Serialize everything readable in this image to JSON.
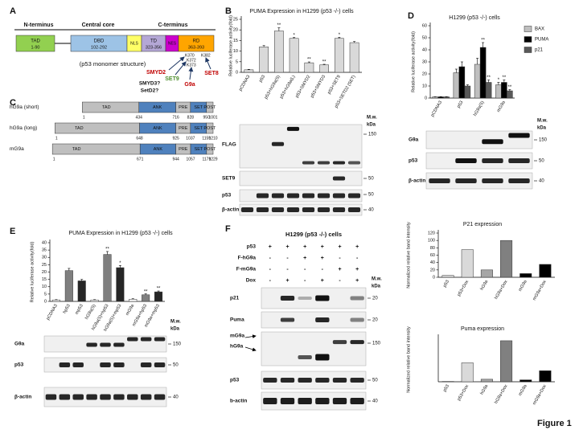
{
  "panel_labels": [
    "A",
    "B",
    "C",
    "D",
    "E",
    "F"
  ],
  "figure_label": "Figure 1",
  "p53_map": {
    "regions": [
      "N-terminus",
      "Central core",
      "C-terminus"
    ],
    "domains": [
      {
        "name": "TAD",
        "range": "1-90"
      },
      {
        "name": "DBD",
        "range": "102-292"
      },
      {
        "name": "NLS"
      },
      {
        "name": "TD",
        "range": "323-356"
      },
      {
        "name": "NES"
      },
      {
        "name": "RD",
        "range": "363-393"
      }
    ],
    "caption": "(p53 monomer structure)",
    "sites": [
      "K370",
      "K382",
      "K372",
      "K373"
    ],
    "enzymes": [
      "SMYD2",
      "SET9",
      "SMYD3?",
      "SetD2?",
      "G9a",
      "SET8"
    ]
  },
  "g9a_constructs": [
    {
      "name": "hG9a (short)",
      "domains": [
        "TAD",
        "ANK",
        "PRE",
        "SET",
        "POST"
      ],
      "positions": [
        1,
        434,
        716,
        828,
        950,
        1001
      ]
    },
    {
      "name": "hG9a (long)",
      "domains": [
        "TAD",
        "ANK",
        "PRE",
        "SET",
        "POST"
      ],
      "positions": [
        1,
        648,
        925,
        1037,
        1159,
        1210
      ]
    },
    {
      "name": "mG9a",
      "domains": [
        "TAD",
        "ANK",
        "PRE",
        "SET",
        "POST"
      ],
      "positions": [
        1,
        671,
        944,
        1057,
        1179,
        1229
      ]
    }
  ],
  "blots": {
    "B": {
      "labels": [
        "FLAG",
        "SET9",
        "p53",
        "β-actin"
      ],
      "mw": "M.w.",
      "unit": "kDa",
      "markers": [
        150,
        50,
        50,
        40
      ]
    },
    "D": {
      "labels": [
        "G9a",
        "p53",
        "β-actin"
      ],
      "mw": "M.w.",
      "unit": "kDa",
      "markers": [
        150,
        50,
        40
      ]
    },
    "E": {
      "labels": [
        "G9a",
        "p53",
        "β-actin"
      ],
      "mw": "M.w.",
      "unit": "kDa",
      "markers": [
        150,
        50,
        40
      ]
    },
    "F": {
      "title": "H1299 (p53 -/-) cells",
      "conditions": [
        {
          "name": "p53",
          "signs": [
            "+",
            "+",
            "+",
            "+",
            "+",
            "+"
          ]
        },
        {
          "name": "F-hG9a",
          "signs": [
            "-",
            "-",
            "+",
            "+",
            "-",
            "-"
          ]
        },
        {
          "name": "F-mG9a",
          "signs": [
            "-",
            "-",
            "-",
            "-",
            "+",
            "+"
          ]
        },
        {
          "name": "Dox",
          "signs": [
            "-",
            "+",
            "-",
            "+",
            "-",
            "+"
          ]
        }
      ],
      "labels": [
        "p21",
        "Puma",
        "mG9a",
        "hG9a",
        "p53",
        "b-actin"
      ],
      "mw": "M.w.",
      "unit": "kDa",
      "markers": [
        20,
        20,
        150,
        50,
        40
      ]
    }
  },
  "chart_data": [
    {
      "type": "bar",
      "title": "PUMA Expression in H1299 (p53 -/-) cells",
      "y_label": "Relative luciferase activity(fold)",
      "categories": [
        "pCDNA3",
        "p53",
        "p53+hG9a(S)",
        "p53+hG9a(L)",
        "p53+SMYD2",
        "p53+SMYD3",
        "p53+SET9",
        "p53+SETD2 (SET)"
      ],
      "values": [
        1.2,
        12,
        19.5,
        16,
        4.5,
        3.5,
        16,
        14
      ],
      "errors": [
        0.2,
        0.6,
        1.5,
        0.4,
        0.4,
        0.3,
        0.5,
        0.5
      ],
      "annotations": [
        null,
        null,
        "**",
        "*",
        "**",
        "**",
        "*",
        null
      ],
      "color": "#d9d9d9",
      "ylim": [
        0,
        25
      ],
      "yticks": [
        0,
        5,
        10,
        15,
        20,
        25
      ]
    },
    {
      "type": "bar",
      "title": "H1299 (p53 -/-) cells",
      "y_label": "Relative luciferase activity(fold)",
      "categories": [
        "pCDNA3",
        "p53",
        "hG9a(S)",
        "mG9a"
      ],
      "series": [
        {
          "name": "BAX",
          "color": "#bfbfbf",
          "values": [
            1,
            21,
            28,
            11
          ],
          "errors": [
            0.2,
            3,
            5,
            2
          ],
          "annotations": [
            null,
            null,
            null,
            "*"
          ]
        },
        {
          "name": "PUMA",
          "color": "#000000",
          "values": [
            1,
            26,
            42,
            13
          ],
          "errors": [
            0.2,
            4,
            4,
            2
          ],
          "annotations": [
            null,
            null,
            "**",
            "**"
          ]
        },
        {
          "name": "p21",
          "color": "#595959",
          "values": [
            1,
            10,
            13,
            6
          ],
          "errors": [
            0.2,
            1,
            2,
            1
          ],
          "annotations": [
            null,
            null,
            "**",
            "**"
          ]
        }
      ],
      "legend": "right",
      "ylim": [
        0,
        60
      ],
      "yticks": [
        0,
        10,
        20,
        30,
        40,
        50,
        60
      ]
    },
    {
      "type": "bar",
      "title": "PUMA Expression in H1299 (p53 -/-) cells",
      "y_label": "Relative luciferase activity(fold)",
      "categories": [
        "pCDNA3",
        "hp53",
        "mp53",
        "hG9a(S)",
        "hG9a(S)+hp53",
        "hG9a(S)+mp53",
        "mG9a",
        "mG9a+hp53",
        "mG9a+mp53"
      ],
      "values": [
        1,
        21,
        14,
        1,
        32,
        23,
        1.5,
        4.5,
        6.5
      ],
      "errors": [
        0.2,
        1.5,
        1,
        0.2,
        2,
        1.5,
        0.3,
        0.6,
        0.6
      ],
      "annotations": [
        null,
        null,
        null,
        null,
        "**",
        "*",
        null,
        "**",
        "**"
      ],
      "colors": [
        "#ffffff",
        "#7f7f7f",
        "#262626",
        "#ffffff",
        "#7f7f7f",
        "#262626",
        "#ffffff",
        "#7f7f7f",
        "#262626"
      ],
      "ylim": [
        0,
        40
      ],
      "yticks": [
        0,
        5,
        10,
        15,
        20,
        25,
        30,
        35,
        40
      ]
    },
    {
      "type": "bar",
      "title": "P21 expression",
      "y_label": "Normalized relative band intensity",
      "categories": [
        "p53",
        "p53+Dox",
        "hG9a",
        "hG9a+Dox",
        "mG9a",
        "mG9a+Dox"
      ],
      "values": [
        5,
        75,
        20,
        100,
        10,
        35
      ],
      "colors": [
        "#d9d9d9",
        "#d9d9d9",
        "#a6a6a6",
        "#808080",
        "#000000",
        "#000000"
      ],
      "ylim": [
        0,
        120
      ],
      "yticks": [
        0,
        20,
        40,
        60,
        80,
        100,
        120
      ]
    },
    {
      "type": "bar",
      "title": "Puma expression",
      "y_label": "Normalized relative band intensity",
      "categories": [
        "p53",
        "p53+Dox",
        "hG9a",
        "hG9a+Dox",
        "mG9a",
        "mG9a+Dox"
      ],
      "values": [
        1,
        60,
        8,
        130,
        6,
        35
      ],
      "colors": [
        "#d9d9d9",
        "#d9d9d9",
        "#a6a6a6",
        "#808080",
        "#000000",
        "#000000"
      ],
      "ylim": [
        0,
        140
      ]
    }
  ]
}
